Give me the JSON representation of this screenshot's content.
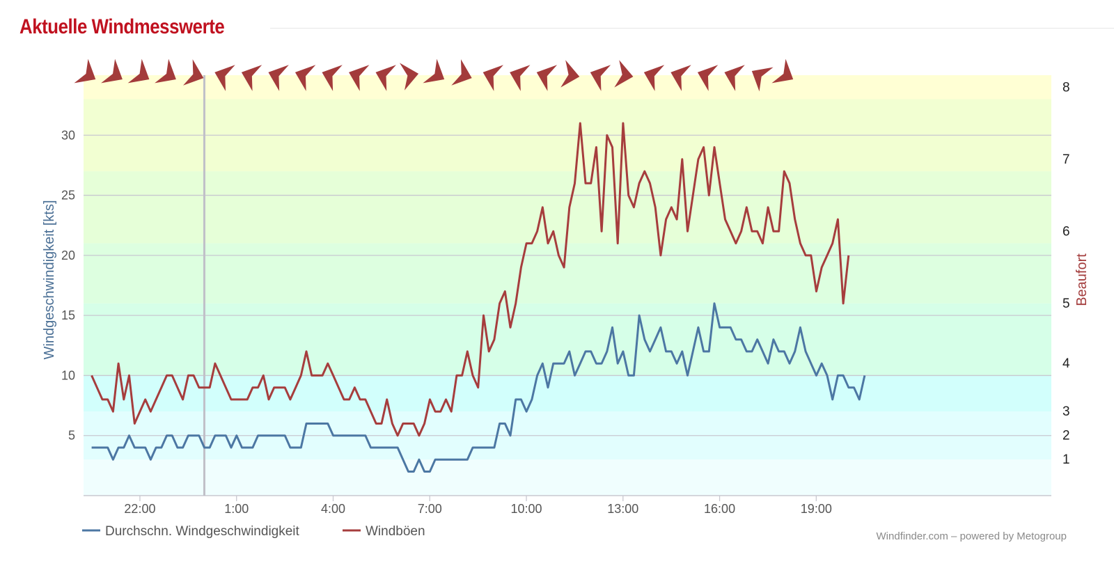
{
  "header": {
    "title": "Aktuelle Windmesswerte"
  },
  "credit": "Windfinder.com – powered by Metogroup",
  "colors": {
    "title": "#c0111f",
    "avg": "#4c77a3",
    "gust": "#a63d3d",
    "arrow": "#a33b3b"
  },
  "chart_data": {
    "type": "line",
    "ylabel": "Windgeschwindigkeit [kts]",
    "y2label": "Beaufort",
    "ylim": [
      0,
      35
    ],
    "yticks": [
      5,
      10,
      15,
      20,
      25,
      30
    ],
    "beaufort_ticks": [
      {
        "label": "1",
        "kts": 3
      },
      {
        "label": "2",
        "kts": 5
      },
      {
        "label": "3",
        "kts": 7
      },
      {
        "label": "4",
        "kts": 11
      },
      {
        "label": "5",
        "kts": 16
      },
      {
        "label": "6",
        "kts": 22
      },
      {
        "label": "7",
        "kts": 28
      },
      {
        "label": "8",
        "kts": 34
      }
    ],
    "xlim": [
      -3.75,
      26.3
    ],
    "x_tick_labels": [
      "22:00",
      "1:00",
      "4:00",
      "7:00",
      "10:00",
      "13:00",
      "16:00",
      "19:00"
    ],
    "x_tick_hours": [
      -2,
      1,
      4,
      7,
      10,
      13,
      16,
      19
    ],
    "marker_hour": 0,
    "grid": true,
    "legend_position": "bottom-left",
    "background_bands_kts": [
      {
        "from": 0,
        "to": 3,
        "color": "#f0fefe"
      },
      {
        "from": 3,
        "to": 7,
        "color": "#e2fefe"
      },
      {
        "from": 7,
        "to": 10,
        "color": "#d2fffc"
      },
      {
        "from": 10,
        "to": 16,
        "color": "#d6ffe8"
      },
      {
        "from": 16,
        "to": 21,
        "color": "#ddffe0"
      },
      {
        "from": 21,
        "to": 27,
        "color": "#e6ffd8"
      },
      {
        "from": 27,
        "to": 33,
        "color": "#f2ffd2"
      },
      {
        "from": 33,
        "to": 35,
        "color": "#ffffd4"
      }
    ],
    "direction_arrows": {
      "start_hour": -3.6,
      "step_hours": 0.833,
      "bearings_deg": [
        120,
        120,
        120,
        120,
        110,
        290,
        290,
        290,
        290,
        290,
        290,
        290,
        80,
        120,
        110,
        290,
        290,
        290,
        100,
        290,
        100,
        290,
        290,
        290,
        290,
        300,
        120
      ]
    },
    "series": [
      {
        "name": "Durchschn. Windgeschwindigkeit",
        "color": "#4c77a3",
        "x_start": -3.5,
        "step": 0.1667,
        "values": [
          4,
          4,
          4,
          4,
          3,
          4,
          4,
          5,
          4,
          4,
          4,
          3,
          4,
          4,
          5,
          5,
          4,
          4,
          5,
          5,
          5,
          4,
          4,
          5,
          5,
          5,
          4,
          5,
          4,
          4,
          4,
          5,
          5,
          5,
          5,
          5,
          5,
          4,
          4,
          4,
          6,
          6,
          6,
          6,
          6,
          5,
          5,
          5,
          5,
          5,
          5,
          5,
          4,
          4,
          4,
          4,
          4,
          4,
          3,
          2,
          2,
          3,
          2,
          2,
          3,
          3,
          3,
          3,
          3,
          3,
          3,
          4,
          4,
          4,
          4,
          4,
          6,
          6,
          5,
          8,
          8,
          7,
          8,
          10,
          11,
          9,
          11,
          11,
          11,
          12,
          10,
          11,
          12,
          12,
          11,
          11,
          12,
          14,
          11,
          12,
          10,
          10,
          15,
          13,
          12,
          13,
          14,
          12,
          12,
          11,
          12,
          10,
          12,
          14,
          12,
          12,
          16,
          14,
          14,
          14,
          13,
          13,
          12,
          12,
          13,
          12,
          11,
          13,
          12,
          12,
          11,
          12,
          14,
          12,
          11,
          10,
          11,
          10,
          8,
          10,
          10,
          9,
          9,
          8,
          10
        ]
      },
      {
        "name": "Windböen",
        "color": "#a63d3d",
        "x_start": -3.5,
        "step": 0.1667,
        "values": [
          10,
          9,
          8,
          8,
          7,
          11,
          8,
          10,
          6,
          7,
          8,
          7,
          8,
          9,
          10,
          10,
          9,
          8,
          10,
          10,
          9,
          9,
          9,
          11,
          10,
          9,
          8,
          8,
          8,
          8,
          9,
          9,
          10,
          8,
          9,
          9,
          9,
          8,
          9,
          10,
          12,
          10,
          10,
          10,
          11,
          10,
          9,
          8,
          8,
          9,
          8,
          8,
          7,
          6,
          6,
          8,
          6,
          5,
          6,
          6,
          6,
          5,
          6,
          8,
          7,
          7,
          8,
          7,
          10,
          10,
          12,
          10,
          9,
          15,
          12,
          13,
          16,
          17,
          14,
          16,
          19,
          21,
          21,
          22,
          24,
          21,
          22,
          20,
          19,
          24,
          26,
          31,
          26,
          26,
          29,
          22,
          30,
          29,
          21,
          31,
          25,
          24,
          26,
          27,
          26,
          24,
          20,
          23,
          24,
          23,
          28,
          22,
          25,
          28,
          29,
          25,
          29,
          26,
          23,
          22,
          21,
          22,
          24,
          22,
          22,
          21,
          24,
          22,
          22,
          27,
          26,
          23,
          21,
          20,
          20,
          17,
          19,
          20,
          21,
          23,
          16,
          20
        ]
      }
    ]
  }
}
